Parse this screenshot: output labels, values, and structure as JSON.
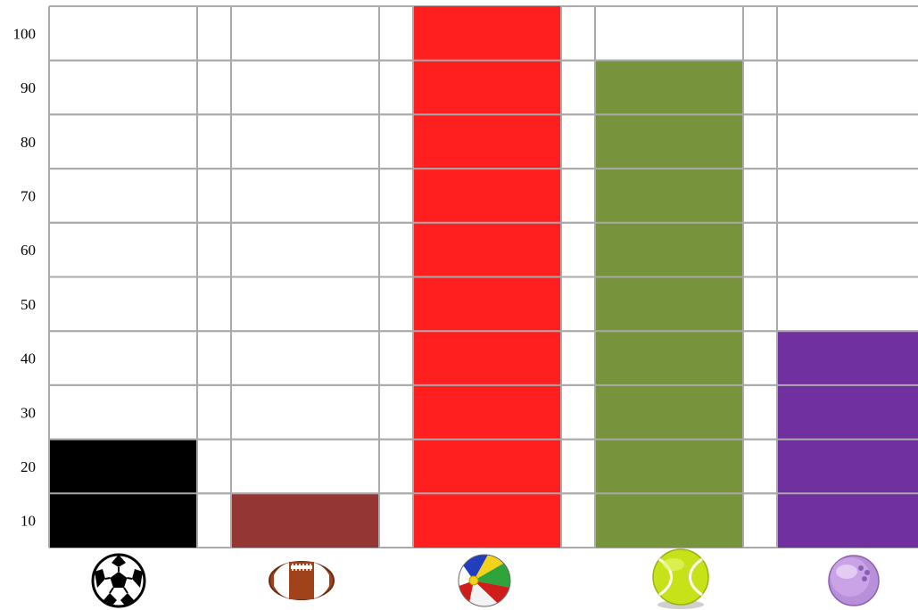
{
  "chart_data": {
    "type": "bar",
    "categories": [
      "soccer-ball",
      "american-football",
      "beach-ball",
      "tennis-ball",
      "bowling-ball"
    ],
    "values": [
      25,
      15,
      105,
      95,
      45
    ],
    "colors": [
      "#000000",
      "#943634",
      "#ff1f1f",
      "#77933c",
      "#7030a0"
    ],
    "icons": [
      "soccer-ball-icon",
      "american-football-icon",
      "beach-ball-icon",
      "tennis-ball-icon",
      "bowling-ball-icon"
    ],
    "yticks": [
      "10",
      "20",
      "30",
      "40",
      "50",
      "60",
      "70",
      "80",
      "90",
      "100"
    ],
    "ylim": [
      5,
      105
    ],
    "grid": true,
    "gridline_color": "#aaaaaa"
  }
}
